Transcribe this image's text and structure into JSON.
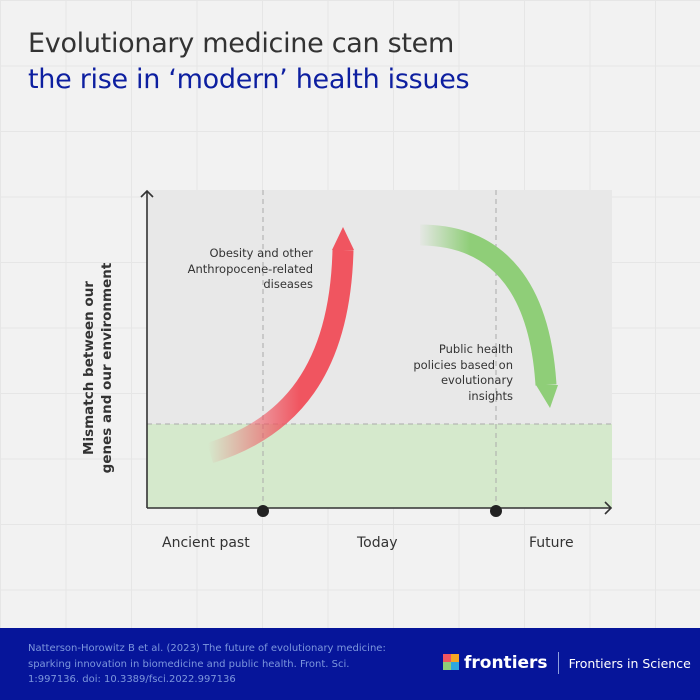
{
  "title": {
    "line1": "Evolutionary medicine can stem",
    "line2": "the rise in ‘modern’ health issues",
    "line2_color": "#0d1fa0"
  },
  "diagram": {
    "y_axis_label": "Mismatch between our genes and our environment",
    "x_labels": [
      "Ancient past",
      "Today",
      "Future"
    ],
    "red_arrow_label": "Obesity and other Anthropocene-related diseases",
    "green_arrow_label": "Public health policies based on evolutionary insights",
    "colors": {
      "red_arrow": "#f05560",
      "green_arrow": "#8fce78",
      "baseline_band": "#d5e9cc",
      "plot_bg": "#e8e8e8"
    }
  },
  "footer": {
    "citation": "Natterson-Horowitz B et al. (2023) The future of evolutionary medicine: sparking innovation in biomedicine and public health. Front. Sci. 1:997136. doi: 10.3389/fsci.2022.997136",
    "brand": "frontiers",
    "journal": "Frontiers in Science",
    "background": "#06159a"
  }
}
